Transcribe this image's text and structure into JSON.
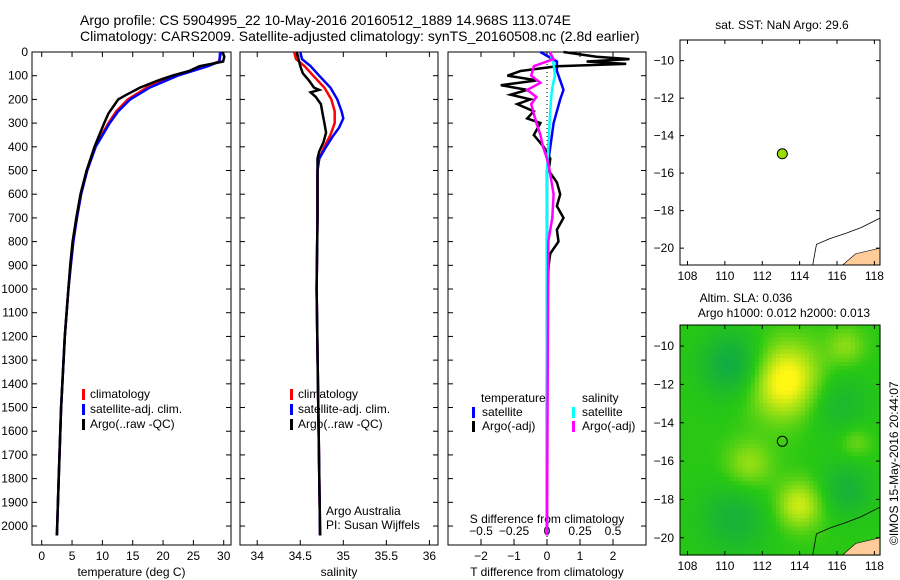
{
  "title_lines": [
    "Argo profile: CS 5904995_22 10-May-2016 20160512_1889 14.968S 113.074E",
    "Climatology: CARS2009. Satellite-adjusted climatology: synTS_20160508.nc (2.8d earlier)"
  ],
  "colors": {
    "climatology": "#ff0000",
    "satellite": "#0000ff",
    "argo": "#000000",
    "sal_satellite": "#00ffff",
    "sal_argo": "#ff00ff",
    "land": "#ffcc99",
    "float_marker": "#99dd00"
  },
  "chart_data": [
    {
      "type": "line",
      "id": "temperature",
      "xlabel": "temperature (deg C)",
      "ylabel": "",
      "xlim": [
        -1.6,
        31.2
      ],
      "ylim": [
        2080,
        0
      ],
      "xticks": [
        0,
        5,
        10,
        15,
        20,
        25,
        30
      ],
      "yticks": [
        0,
        100,
        200,
        300,
        400,
        500,
        600,
        700,
        800,
        900,
        1000,
        1100,
        1200,
        1300,
        1400,
        1500,
        1600,
        1700,
        1800,
        1900,
        2000
      ],
      "legend": [
        "climatology",
        "satellite-adj. clim.",
        "Argo(..raw -QC)"
      ],
      "series": [
        {
          "name": "climatology",
          "color": "#ff0000",
          "depth": [
            0,
            40,
            60,
            100,
            150,
            200,
            250,
            300,
            400,
            500,
            600,
            700,
            800,
            900,
            1000,
            1200,
            1500,
            1800,
            2040
          ],
          "values": [
            29.6,
            29.2,
            27,
            22,
            17.3,
            14.2,
            12.3,
            11,
            8.8,
            7.5,
            6.5,
            5.8,
            5.2,
            4.8,
            4.4,
            3.8,
            3.2,
            2.8,
            2.5
          ]
        },
        {
          "name": "satellite-adj. clim.",
          "color": "#0000ff",
          "depth": [
            0,
            40,
            60,
            100,
            150,
            200,
            250,
            300,
            400,
            500,
            600,
            700,
            800,
            900,
            1000,
            1200,
            1500,
            1800,
            2040
          ],
          "values": [
            29.4,
            29.3,
            27.4,
            22.4,
            17.8,
            14.6,
            12.6,
            11.2,
            8.9,
            7.5,
            6.5,
            5.8,
            5.2,
            4.8,
            4.4,
            3.8,
            3.2,
            2.8,
            2.5
          ]
        },
        {
          "name": "Argo(..raw -QC)",
          "color": "#000000",
          "depth": [
            0,
            20,
            40,
            50,
            60,
            80,
            100,
            120,
            150,
            180,
            200,
            230,
            260,
            300,
            350,
            400,
            500,
            600,
            700,
            800,
            900,
            1000,
            1200,
            1500,
            1800,
            2040
          ],
          "values": [
            29.8,
            30.1,
            29.9,
            28,
            26,
            24.3,
            21.5,
            19.2,
            16.2,
            14,
            12.6,
            11.8,
            11,
            10.3,
            9.5,
            8.7,
            7.4,
            6.4,
            5.7,
            5.1,
            4.7,
            4.4,
            3.8,
            3.2,
            2.8,
            2.5
          ]
        }
      ]
    },
    {
      "type": "line",
      "id": "salinity",
      "xlabel": "salinity",
      "xlim": [
        33.8,
        36.1
      ],
      "ylim": [
        2080,
        0
      ],
      "xticks": [
        34,
        34.5,
        35,
        35.5,
        36
      ],
      "legend": [
        "climatology",
        "satellite-adj. clim.",
        "Argo(..raw -QC)"
      ],
      "annotation": [
        "Argo Australia",
        "PI: Susan Wijffels"
      ],
      "series": [
        {
          "name": "climatology",
          "color": "#ff0000",
          "depth": [
            0,
            30,
            60,
            100,
            150,
            200,
            250,
            300,
            350,
            400,
            450,
            500,
            700,
            1000,
            1500,
            2040
          ],
          "values": [
            34.43,
            34.45,
            34.55,
            34.65,
            34.78,
            34.86,
            34.9,
            34.9,
            34.85,
            34.78,
            34.72,
            34.7,
            34.7,
            34.69,
            34.71,
            34.73
          ]
        },
        {
          "name": "satellite-adj. clim.",
          "color": "#0000ff",
          "depth": [
            0,
            30,
            60,
            100,
            150,
            200,
            250,
            280,
            320,
            360,
            400,
            450,
            500,
            700,
            1000,
            1500,
            2040
          ],
          "values": [
            34.5,
            34.52,
            34.62,
            34.72,
            34.85,
            34.93,
            34.98,
            35,
            34.95,
            34.87,
            34.8,
            34.72,
            34.7,
            34.7,
            34.69,
            34.71,
            34.73
          ]
        },
        {
          "name": "Argo(..raw -QC)",
          "color": "#000000",
          "depth": [
            0,
            30,
            60,
            90,
            120,
            150,
            160,
            170,
            190,
            220,
            260,
            300,
            340,
            380,
            420,
            450,
            500,
            700,
            1000,
            1500,
            2040
          ],
          "values": [
            34.46,
            34.48,
            34.5,
            34.53,
            34.6,
            34.66,
            34.72,
            34.62,
            34.68,
            34.74,
            34.76,
            34.78,
            34.8,
            34.77,
            34.72,
            34.7,
            34.7,
            34.7,
            34.69,
            34.71,
            34.73
          ]
        }
      ]
    },
    {
      "type": "line",
      "id": "difference",
      "xlabel": "T difference from climatology",
      "x2label": "S difference from climatology",
      "xlim": [
        -3,
        3
      ],
      "x2lim": [
        -0.75,
        0.75
      ],
      "ylim": [
        2080,
        0
      ],
      "xticks": [
        -2,
        -1,
        0,
        1,
        2
      ],
      "x2ticks": [
        -0.5,
        -0.25,
        0,
        0.25,
        0.5
      ],
      "legend_temperature": {
        "title": "temperature",
        "items": [
          "satellite",
          "Argo(-adj)"
        ]
      },
      "legend_salinity": {
        "title": "salinity",
        "items": [
          "satellite",
          "Argo(-adj)"
        ]
      },
      "series": [
        {
          "name": "temperature satellite",
          "color": "#0000ff",
          "depth": [
            0,
            40,
            80,
            120,
            160,
            200,
            300,
            400,
            500,
            2040
          ],
          "values": [
            -0.2,
            0.3,
            0.3,
            0.4,
            0.5,
            0.4,
            0.2,
            0.1,
            0,
            0
          ]
        },
        {
          "name": "temperature Argo(-adj)",
          "color": "#000000",
          "depth": [
            0,
            20,
            30,
            40,
            50,
            60,
            80,
            100,
            120,
            140,
            160,
            180,
            200,
            220,
            250,
            280,
            300,
            350,
            400,
            450,
            500,
            550,
            600,
            650,
            700,
            750,
            800,
            850,
            900,
            1000,
            1500,
            2040
          ],
          "values": [
            0.5,
            1.5,
            2.5,
            1.2,
            2.4,
            0.3,
            -0.8,
            -1.2,
            -0.3,
            -1.4,
            -0.6,
            -1.1,
            -0.5,
            -0.9,
            -0.4,
            -0.6,
            -0.2,
            -0.4,
            -0.1,
            0.1,
            0.05,
            0.3,
            0.4,
            0.3,
            0.5,
            0.3,
            0.35,
            0.1,
            0.05,
            0.02,
            0,
            0
          ]
        },
        {
          "name": "salinity satellite",
          "color": "#00ffff",
          "depth": [
            0,
            50,
            100,
            150,
            200,
            300,
            400,
            500,
            2040
          ],
          "values": [
            0.02,
            0.05,
            0.06,
            0.04,
            0.03,
            0.02,
            0.01,
            0,
            0
          ]
        },
        {
          "name": "salinity Argo(-adj)",
          "color": "#ff00ff",
          "depth": [
            0,
            30,
            60,
            100,
            130,
            160,
            190,
            220,
            260,
            300,
            350,
            400,
            450,
            500,
            600,
            700,
            800,
            2040
          ],
          "values": [
            0.02,
            0.05,
            -0.1,
            -0.12,
            -0.05,
            -0.15,
            -0.08,
            -0.12,
            -0.1,
            -0.08,
            -0.05,
            -0.03,
            0.0,
            0.02,
            0.05,
            0.04,
            0.01,
            0
          ]
        }
      ]
    },
    {
      "type": "scatter",
      "id": "sst-map",
      "title": "sat. SST: NaN Argo: 29.6",
      "xlim": [
        107.6,
        118.3
      ],
      "ylim": [
        -20.9,
        -8.9
      ],
      "xticks": [
        108,
        110,
        112,
        114,
        116,
        118
      ],
      "yticks": [
        -10,
        -12,
        -14,
        -16,
        -18,
        -20
      ],
      "point": {
        "lon": 113.074,
        "lat": -14.968
      }
    },
    {
      "type": "heatmap",
      "id": "sla-map",
      "title_lines": [
        "Altim. SLA: 0.036",
        "Argo h1000: 0.012 h2000: 0.013"
      ],
      "xlim": [
        107.6,
        118.3
      ],
      "ylim": [
        -20.9,
        -8.9
      ],
      "xticks": [
        108,
        110,
        112,
        114,
        116,
        118
      ],
      "yticks": [
        -10,
        -12,
        -14,
        -16,
        -18,
        -20
      ],
      "point": {
        "lon": 113.074,
        "lat": -14.968
      }
    }
  ],
  "credit": "©IMOS 15-May-2016 20:44:07"
}
